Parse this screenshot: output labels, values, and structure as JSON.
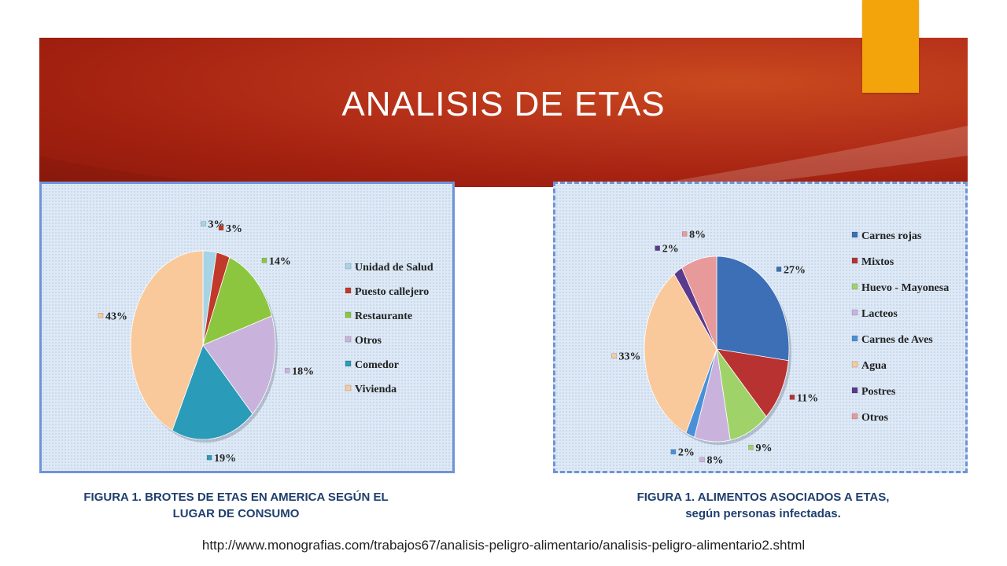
{
  "slide": {
    "title": "ANALISIS DE ETAS",
    "source_url": "http://www.monografias.com/trabajos67/analisis-peligro-alimentario/analisis-peligro-alimentario2.shtml",
    "colors": {
      "banner": "#b8331a",
      "accent_tab": "#f2a40a",
      "caption_text": "#1f3f6e"
    }
  },
  "captions": {
    "figure1_line1": "FIGURA 1. BROTES DE ETAS EN AMERICA SEGÚN EL",
    "figure1_line2": "LUGAR DE CONSUMO",
    "figure2_line1": "FIGURA 1. ALIMENTOS ASOCIADOS A ETAS,",
    "figure2_line2": "según personas infectadas."
  },
  "chart_data": [
    {
      "type": "pie",
      "title": "",
      "legend_position": "right",
      "slices": [
        {
          "name": "Unidad de Salud",
          "value": 3,
          "label": "3%",
          "color": "#a6d4e6"
        },
        {
          "name": "Puesto callejero",
          "value": 3,
          "label": "3%",
          "color": "#c0392b"
        },
        {
          "name": "Restaurante",
          "value": 14,
          "label": "14%",
          "color": "#8cc63f"
        },
        {
          "name": "Otros",
          "value": 18,
          "label": "18%",
          "color": "#c9b3dc"
        },
        {
          "name": "Comedor",
          "value": 19,
          "label": "19%",
          "color": "#2a9bb8"
        },
        {
          "name": "Vivienda",
          "value": 43,
          "label": "43%",
          "color": "#f9c99b"
        }
      ]
    },
    {
      "type": "pie",
      "title": "",
      "legend_position": "right",
      "slices": [
        {
          "name": "Carnes rojas",
          "value": 27,
          "label": "27%",
          "color": "#3c6fb6"
        },
        {
          "name": "Mixtos",
          "value": 11,
          "label": "11%",
          "color": "#b83232"
        },
        {
          "name": "Huevo - Mayonesa",
          "value": 9,
          "label": "9%",
          "color": "#9fd36a"
        },
        {
          "name": "Lacteos",
          "value": 8,
          "label": "8%",
          "color": "#c9b3dc"
        },
        {
          "name": "Carnes de Aves",
          "value": 2,
          "label": "2%",
          "color": "#4a90d9"
        },
        {
          "name": "Agua",
          "value": 33,
          "label": "33%",
          "color": "#f9c99b"
        },
        {
          "name": "Postres",
          "value": 2,
          "label": "2%",
          "color": "#5b3a8c"
        },
        {
          "name": "Otros",
          "value": 8,
          "label": "8%",
          "color": "#e89a9a"
        }
      ]
    }
  ]
}
